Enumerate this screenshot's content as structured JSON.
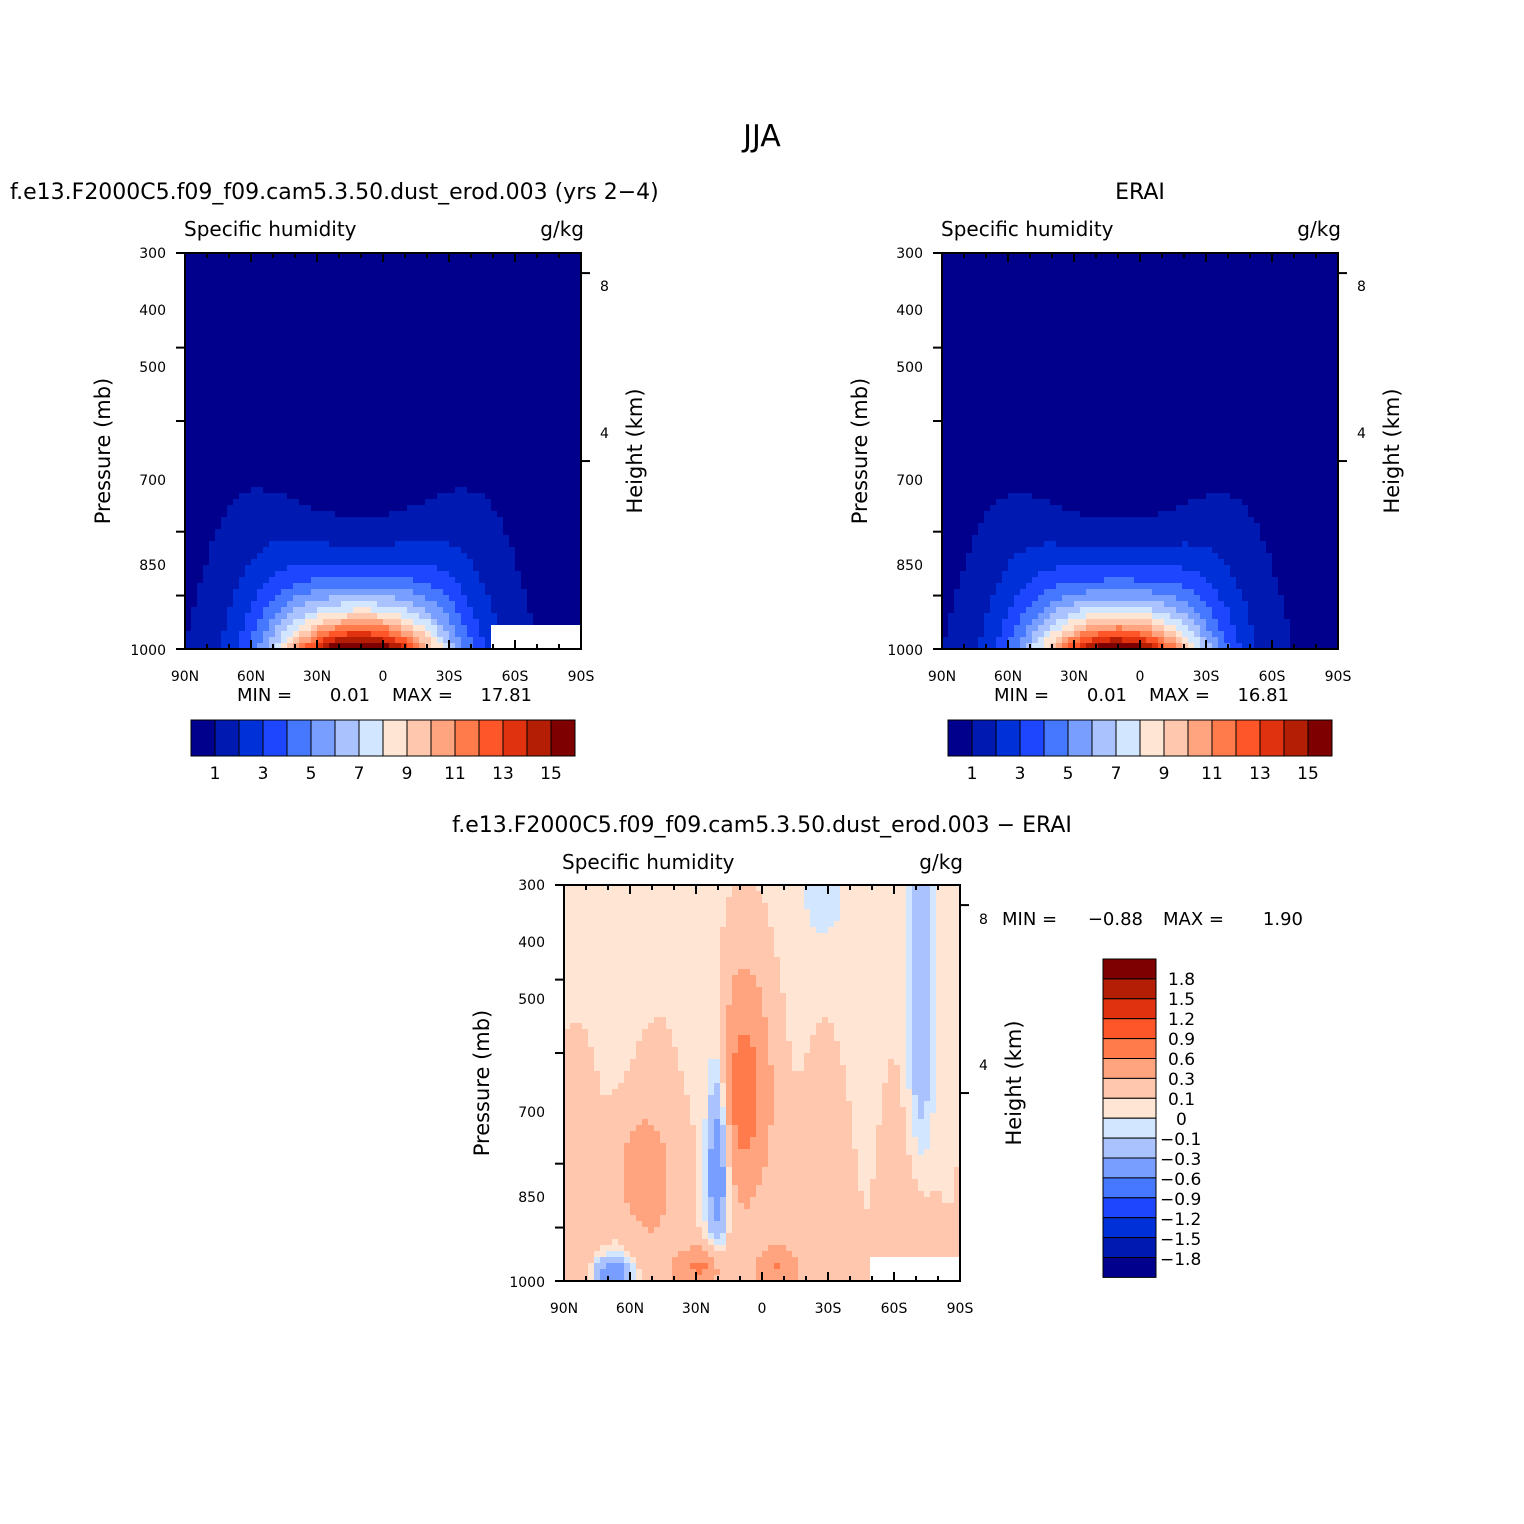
{
  "figure": {
    "title": "JJA",
    "colors": {
      "seq": [
        "#00008c",
        "#0019b0",
        "#0030d8",
        "#1e46ff",
        "#4678ff",
        "#789eff",
        "#aac3ff",
        "#d3e6ff",
        "#ffe6d4",
        "#ffc7ae",
        "#ffa47f",
        "#ff7b4c",
        "#ff5629",
        "#e0320f",
        "#b41e05",
        "#7f0000"
      ],
      "diff": [
        "#00008c",
        "#0019b0",
        "#0030d8",
        "#1e46ff",
        "#4678ff",
        "#789eff",
        "#aac3ff",
        "#d3e6ff",
        "#ffe6d4",
        "#ffc7ae",
        "#ffa47f",
        "#ff7b4c",
        "#ff5629",
        "#e0320f",
        "#b41e05",
        "#7f0000"
      ]
    }
  },
  "chart_data": [
    {
      "type": "heatmap",
      "title": "f.e13.F2000C5.f09_f09.cam5.3.50.dust_erod.003 (yrs 2-4)",
      "left_label": "Specific humidity",
      "right_label": "g/kg",
      "xlabel": "",
      "ylabel": "Pressure (mb)",
      "y2label": "Height (km)",
      "x_ticks": [
        "90N",
        "60N",
        "30N",
        "0",
        "30S",
        "60S",
        "90S"
      ],
      "y_ticks": [
        "300",
        "400",
        "500",
        "700",
        "850",
        "1000"
      ],
      "y2_ticks": [
        "8",
        "4"
      ],
      "xlim": [
        90,
        -90
      ],
      "ylim": [
        1000,
        300
      ],
      "min_label": "MIN =",
      "min_value": "0.01",
      "max_label": "MAX =",
      "max_value": "17.81",
      "colorbar_labels": [
        "1",
        "3",
        "5",
        "7",
        "9",
        "11",
        "13",
        "15"
      ],
      "field": {
        "peak_lat": 10,
        "max": 17.81,
        "min": 0.01,
        "masked_region": {
          "lat_from": -50,
          "p_from": 925
        }
      }
    },
    {
      "type": "heatmap",
      "title": "ERAI",
      "left_label": "Specific humidity",
      "right_label": "g/kg",
      "xlabel": "",
      "ylabel": "Pressure (mb)",
      "y2label": "Height (km)",
      "x_ticks": [
        "90N",
        "60N",
        "30N",
        "0",
        "30S",
        "60S",
        "90S"
      ],
      "y_ticks": [
        "300",
        "400",
        "500",
        "700",
        "850",
        "1000"
      ],
      "y2_ticks": [
        "8",
        "4"
      ],
      "xlim": [
        90,
        -90
      ],
      "ylim": [
        1000,
        300
      ],
      "min_label": "MIN =",
      "min_value": "0.01",
      "max_label": "MAX =",
      "max_value": "16.81",
      "colorbar_labels": [
        "1",
        "3",
        "5",
        "7",
        "9",
        "11",
        "13",
        "15"
      ],
      "field": {
        "peak_lat": 10,
        "max": 16.81,
        "min": 0.01
      }
    },
    {
      "type": "heatmap",
      "title": "f.e13.F2000C5.f09_f09.cam5.3.50.dust_erod.003 - ERAI",
      "left_label": "Specific humidity",
      "right_label": "g/kg",
      "xlabel": "",
      "ylabel": "Pressure (mb)",
      "y2label": "Height (km)",
      "x_ticks": [
        "90N",
        "60N",
        "30N",
        "0",
        "30S",
        "60S",
        "90S"
      ],
      "y_ticks": [
        "300",
        "400",
        "500",
        "700",
        "850",
        "1000"
      ],
      "y2_ticks": [
        "8",
        "4"
      ],
      "xlim": [
        90,
        -90
      ],
      "ylim": [
        1000,
        300
      ],
      "min_label": "MIN =",
      "min_value": "-0.88",
      "max_label": "MAX =",
      "max_value": "1.90",
      "colorbar_labels": [
        "1.8",
        "1.5",
        "1.2",
        "0.9",
        "0.6",
        "0.3",
        "0.1",
        "0",
        "-0.1",
        "-0.3",
        "-0.6",
        "-0.9",
        "-1.2",
        "-1.5",
        "-1.8"
      ],
      "field": {
        "max": 1.9,
        "min": -0.88,
        "masked_region": {
          "lat_from": -48,
          "p_from": 925
        }
      }
    }
  ]
}
